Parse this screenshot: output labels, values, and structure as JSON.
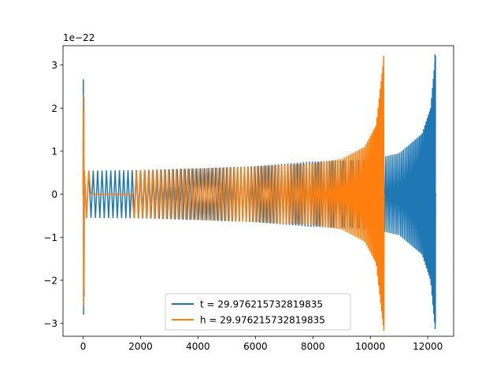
{
  "chart_data": {
    "type": "line",
    "title": "",
    "xlabel": "",
    "ylabel": "",
    "y_offset_text": "1e−22",
    "xlim": [
      -700,
      12900
    ],
    "ylim": [
      -3.3,
      3.45
    ],
    "x_ticks": [
      0,
      2000,
      4000,
      6000,
      8000,
      10000,
      12000
    ],
    "x_tick_labels": [
      "0",
      "2000",
      "4000",
      "6000",
      "8000",
      "10000",
      "12000"
    ],
    "y_ticks": [
      -3,
      -2,
      -1,
      0,
      1,
      2,
      3
    ],
    "y_tick_labels": [
      "−3",
      "−2",
      "−1",
      "0",
      "1",
      "2",
      "3"
    ],
    "grid": false,
    "legend_position": "lower center",
    "series": [
      {
        "name": "t = 29.976215732819835",
        "color": "#1f77b4",
        "waveform": "chirp",
        "x_start": 0,
        "x_merger": 12270,
        "x_end": 12300,
        "initial_spike": {
          "x": 0,
          "y_max": 2.67,
          "y_min": -2.8
        },
        "envelope": [
          [
            200,
            0.55
          ],
          [
            2000,
            0.56
          ],
          [
            4000,
            0.6
          ],
          [
            6000,
            0.65
          ],
          [
            8000,
            0.76
          ],
          [
            10000,
            0.8
          ],
          [
            11000,
            0.95
          ],
          [
            11800,
            1.4
          ],
          [
            12100,
            2.0
          ],
          [
            12270,
            3.22
          ]
        ],
        "post_merger_value": 0.0
      },
      {
        "name": "h = 29.976215732819835",
        "color": "#ff7f0e",
        "waveform": "chirp",
        "x_start": 0,
        "x_merger": 10480,
        "x_end": 10480,
        "initial_spike": {
          "x": 0,
          "y_max": 2.3,
          "y_min": -2.6
        },
        "envelope": [
          [
            0,
            0.55
          ],
          [
            2000,
            0.56
          ],
          [
            4000,
            0.6
          ],
          [
            6000,
            0.65
          ],
          [
            8000,
            0.72
          ],
          [
            9000,
            0.82
          ],
          [
            9800,
            1.1
          ],
          [
            10200,
            1.6
          ],
          [
            10480,
            3.22
          ]
        ],
        "flat_segment": [
          200,
          1750
        ],
        "post_merger_value": 0.0
      }
    ]
  }
}
